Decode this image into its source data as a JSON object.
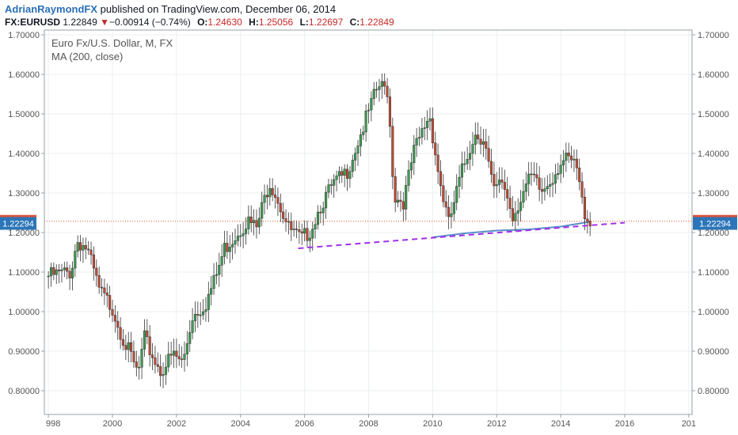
{
  "header": {
    "author": "AdrianRaymondFX",
    "published": "published on TradingView.com, December 06, 2014",
    "symbol": "FX:EURUSD",
    "last": "1.22849",
    "change_arrow": "▼",
    "change": "−0.00914 (−0.74%)",
    "open_label": "O:",
    "open": "1.24630",
    "high_label": "H:",
    "high": "1.25056",
    "low_label": "L:",
    "low": "1.22697",
    "close_label": "C:",
    "close": "1.22849"
  },
  "chart_title": "Euro Fx/U.S. Dollar, M, FX",
  "study_label": "MA (200, close)",
  "colors": {
    "up": "#3a9e4f",
    "down": "#c24a34",
    "ma": "#5b8fc9",
    "trendline": "#a030e8",
    "last_price": "#d9553e",
    "level": "#2c75b8",
    "accent": "#2a6fb6"
  },
  "chart_data": {
    "type": "candlestick",
    "interval": "monthly",
    "x_ticks": [
      "998",
      "2000",
      "2002",
      "2004",
      "2006",
      "2008",
      "2010",
      "2012",
      "2014",
      "2016",
      "201"
    ],
    "y_ticks": [
      "1.70000",
      "1.60000",
      "1.50000",
      "1.40000",
      "1.30000",
      "1.20000",
      "1.10000",
      "1.00000",
      "0.90000",
      "0.80000"
    ],
    "ylim": [
      0.77,
      1.71
    ],
    "xlim": [
      1997.8,
      2017.2
    ],
    "last_price_label": "1.22849",
    "last_price": 1.22849,
    "level_label": "1.22294",
    "level": 1.22294,
    "trendline": {
      "from": [
        2005.8,
        1.16
      ],
      "to": [
        2016.0,
        1.225
      ]
    },
    "ma_200": [
      [
        2010.0,
        1.188
      ],
      [
        2011.0,
        1.198
      ],
      [
        2012.0,
        1.205
      ],
      [
        2013.0,
        1.208
      ],
      [
        2014.0,
        1.215
      ],
      [
        2014.9,
        1.227
      ]
    ],
    "price_path": [
      [
        1998.0,
        1.09
      ],
      [
        1998.7,
        1.1
      ],
      [
        1998.9,
        1.18
      ],
      [
        1999.2,
        1.16
      ],
      [
        1999.6,
        1.05
      ],
      [
        2000.0,
        1.01
      ],
      [
        2000.3,
        0.94
      ],
      [
        2000.6,
        0.88
      ],
      [
        2000.8,
        0.84
      ],
      [
        2001.0,
        0.93
      ],
      [
        2001.3,
        0.88
      ],
      [
        2001.5,
        0.85
      ],
      [
        2001.9,
        0.89
      ],
      [
        2002.2,
        0.87
      ],
      [
        2002.5,
        0.99
      ],
      [
        2002.9,
        1.02
      ],
      [
        2003.2,
        1.08
      ],
      [
        2003.5,
        1.16
      ],
      [
        2003.9,
        1.2
      ],
      [
        2004.2,
        1.23
      ],
      [
        2004.5,
        1.21
      ],
      [
        2004.9,
        1.33
      ],
      [
        2005.1,
        1.3
      ],
      [
        2005.5,
        1.21
      ],
      [
        2005.9,
        1.18
      ],
      [
        2006.2,
        1.21
      ],
      [
        2006.5,
        1.27
      ],
      [
        2006.9,
        1.32
      ],
      [
        2007.3,
        1.35
      ],
      [
        2007.8,
        1.46
      ],
      [
        2008.3,
        1.57
      ],
      [
        2008.6,
        1.56
      ],
      [
        2008.8,
        1.29
      ],
      [
        2009.1,
        1.28
      ],
      [
        2009.4,
        1.4
      ],
      [
        2009.9,
        1.5
      ],
      [
        2010.2,
        1.34
      ],
      [
        2010.5,
        1.22
      ],
      [
        2010.9,
        1.35
      ],
      [
        2011.3,
        1.45
      ],
      [
        2011.6,
        1.44
      ],
      [
        2011.9,
        1.3
      ],
      [
        2012.2,
        1.33
      ],
      [
        2012.5,
        1.24
      ],
      [
        2012.8,
        1.3
      ],
      [
        2013.1,
        1.34
      ],
      [
        2013.4,
        1.3
      ],
      [
        2013.8,
        1.35
      ],
      [
        2014.0,
        1.38
      ],
      [
        2014.3,
        1.38
      ],
      [
        2014.5,
        1.36
      ],
      [
        2014.7,
        1.26
      ],
      [
        2014.9,
        1.23
      ]
    ]
  }
}
